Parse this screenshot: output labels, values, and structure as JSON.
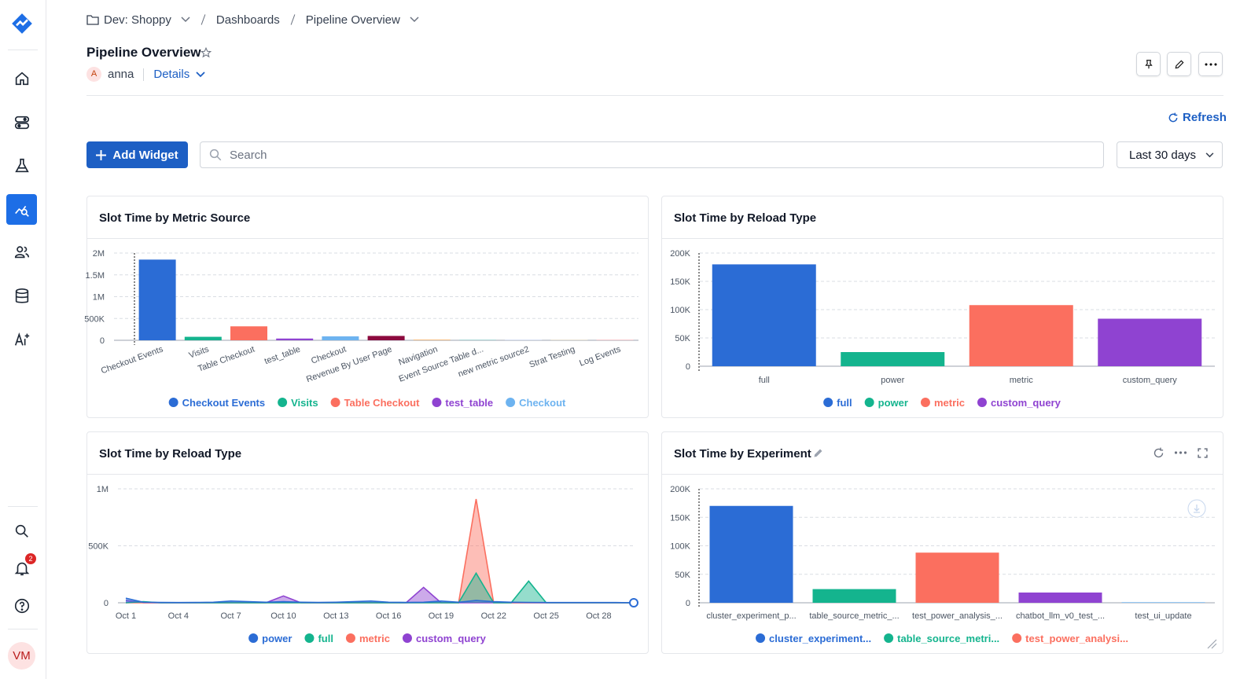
{
  "sidebar": {
    "notifications": 2,
    "avatar": "VM"
  },
  "header": {
    "breadcrumb": [
      "Dev: Shoppy",
      "Dashboards",
      "Pipeline Overview"
    ],
    "title": "Pipeline Overview",
    "owner_initial": "A",
    "owner": "anna",
    "details": "Details"
  },
  "toolbar": {
    "refresh": "Refresh",
    "add_widget": "Add Widget",
    "search_placeholder": "Search",
    "range": "Last 30 days"
  },
  "chart_data": [
    {
      "type": "bar",
      "title": "Slot Time by Metric Source",
      "categories": [
        "Checkout Events",
        "Visits",
        "Table Checkout",
        "test_table",
        "Checkout",
        "Revenue By User Page",
        "Navigation",
        "Event Source Table d...",
        "new metric source2",
        "Strat Testing",
        "Log Events"
      ],
      "values": [
        1850000,
        80000,
        320000,
        40000,
        90000,
        100000,
        15000,
        15000,
        10000,
        8000,
        10000
      ],
      "colors": [
        "#2b6cd5",
        "#14b48e",
        "#fb6f5f",
        "#8f43d1",
        "#6db3f0",
        "#8c0a3e",
        "#f5b26b",
        "#9fd3d0",
        "#b9c7e8",
        "#d8c9a6",
        "#f3a3a8"
      ],
      "legend": [
        "Checkout Events",
        "Visits",
        "Table Checkout",
        "test_table",
        "Checkout"
      ],
      "ylim": [
        0,
        2000000
      ],
      "yticks": [
        0,
        {
          "value": 500000,
          "label": "500K"
        },
        {
          "value": 1000000,
          "label": "1M"
        },
        {
          "value": 1500000,
          "label": "1.5M"
        },
        {
          "value": 2000000,
          "label": "2M"
        }
      ],
      "grid": true
    },
    {
      "type": "bar",
      "title": "Slot Time by Reload Type",
      "categories": [
        "full",
        "power",
        "metric",
        "custom_query"
      ],
      "values": [
        180000,
        25000,
        108000,
        84000
      ],
      "colors": [
        "#2b6cd5",
        "#14b48e",
        "#fb6f5f",
        "#8f43d1"
      ],
      "legend": [
        "full",
        "power",
        "metric",
        "custom_query"
      ],
      "ylim": [
        0,
        200000
      ],
      "yticks": [
        0,
        {
          "value": 50000,
          "label": "50K"
        },
        {
          "value": 100000,
          "label": "100K"
        },
        {
          "value": 150000,
          "label": "150K"
        },
        {
          "value": 200000,
          "label": "200K"
        }
      ],
      "grid": true
    },
    {
      "type": "area",
      "title": "Slot Time by Reload Type",
      "categories": [
        "Oct 1",
        null,
        null,
        "Oct 4",
        null,
        null,
        "Oct 7",
        null,
        null,
        "Oct 10",
        null,
        null,
        "Oct 13",
        null,
        null,
        "Oct 16",
        null,
        null,
        "Oct 19",
        null,
        null,
        "Oct 22",
        null,
        null,
        "Oct 25",
        null,
        null,
        "Oct 28",
        null,
        null
      ],
      "series": [
        {
          "name": "power",
          "color": "#2b6cd5",
          "values": [
            40000,
            5000,
            3000,
            2000,
            3000,
            5000,
            15000,
            10000,
            5000,
            10000,
            5000,
            3000,
            5000,
            10000,
            15000,
            5000,
            3000,
            5000,
            15000,
            5000,
            20000,
            10000,
            5000,
            3000,
            2000,
            2000,
            2000,
            2000,
            2000,
            0
          ]
        },
        {
          "name": "full",
          "color": "#14b48e",
          "values": [
            0,
            10000,
            0,
            0,
            0,
            0,
            0,
            0,
            0,
            0,
            0,
            0,
            0,
            0,
            0,
            0,
            0,
            0,
            0,
            0,
            260000,
            0,
            0,
            190000,
            0,
            0,
            0,
            0,
            0,
            0
          ]
        },
        {
          "name": "metric",
          "color": "#fb6f5f",
          "values": [
            0,
            0,
            0,
            0,
            0,
            0,
            0,
            0,
            0,
            0,
            0,
            0,
            0,
            0,
            0,
            0,
            0,
            0,
            0,
            0,
            910000,
            0,
            0,
            0,
            0,
            0,
            0,
            0,
            0,
            0
          ]
        },
        {
          "name": "custom_query",
          "color": "#8f43d1",
          "values": [
            20000,
            0,
            0,
            0,
            0,
            0,
            0,
            0,
            0,
            60000,
            0,
            0,
            0,
            0,
            0,
            0,
            0,
            135000,
            0,
            0,
            0,
            0,
            0,
            0,
            0,
            0,
            0,
            0,
            0,
            0
          ]
        }
      ],
      "ylim": [
        0,
        1000000
      ],
      "yticks": [
        0,
        {
          "value": 500000,
          "label": "500K"
        },
        {
          "value": 1000000,
          "label": "1M"
        }
      ],
      "grid": true
    },
    {
      "type": "bar",
      "title": "Slot Time by Experiment",
      "categories": [
        "cluster_experiment_p...",
        "table_source_metric_...",
        "test_power_analysis_...",
        "chatbot_llm_v0_test_...",
        "test_ui_update"
      ],
      "values": [
        170000,
        24000,
        88000,
        18000,
        1000
      ],
      "colors": [
        "#2b6cd5",
        "#14b48e",
        "#fb6f5f",
        "#8f43d1",
        "#6db3f0"
      ],
      "legend": [
        "cluster_experiment...",
        "table_source_metri...",
        "test_power_analysi..."
      ],
      "ylim": [
        0,
        200000
      ],
      "yticks": [
        0,
        {
          "value": 50000,
          "label": "50K"
        },
        {
          "value": 100000,
          "label": "100K"
        },
        {
          "value": 150000,
          "label": "150K"
        },
        {
          "value": 200000,
          "label": "200K"
        }
      ],
      "grid": true
    }
  ]
}
